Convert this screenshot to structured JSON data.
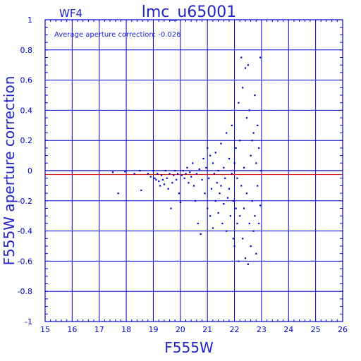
{
  "chart_data": {
    "type": "scatter",
    "chip_label": "WF4",
    "title": "lmc_u65001",
    "annotation": "Average aperture correction: -0.026",
    "xlabel": "F555W",
    "ylabel": "F555W aperture correction",
    "xlim": [
      15,
      26
    ],
    "ylim": [
      -1,
      1
    ],
    "xticks": [
      "15",
      "16",
      "17",
      "18",
      "19",
      "20",
      "21",
      "22",
      "23",
      "24",
      "25",
      "26"
    ],
    "yticks": [
      "-1",
      "-0.8",
      "-0.6",
      "-0.4",
      "-0.2",
      "0",
      "0.2",
      "0.4",
      "0.6",
      "0.8",
      "1"
    ],
    "grid": true,
    "reference_lines": [
      {
        "name": "zero",
        "y": 0.0,
        "color": "#0000cc"
      },
      {
        "name": "average",
        "y": -0.026,
        "color": "#dd2222"
      }
    ],
    "colors": {
      "axes": "#0000cc",
      "points": "#0000cc",
      "text": "#2222cc",
      "average_line": "#dd2222"
    },
    "series": [
      {
        "points": [
          [
            17.5,
            -0.01
          ],
          [
            17.7,
            -0.15
          ],
          [
            17.95,
            -0.005
          ],
          [
            18.3,
            -0.02
          ],
          [
            18.5,
            0.0
          ],
          [
            18.55,
            -0.13
          ],
          [
            18.8,
            -0.02
          ],
          [
            18.9,
            -0.04
          ],
          [
            19.0,
            0.0
          ],
          [
            19.05,
            -0.05
          ],
          [
            19.1,
            -0.06
          ],
          [
            19.15,
            -0.02
          ],
          [
            19.2,
            -0.07
          ],
          [
            19.25,
            -0.1
          ],
          [
            19.3,
            -0.03
          ],
          [
            19.35,
            -0.06
          ],
          [
            19.4,
            -0.09
          ],
          [
            19.45,
            0.0
          ],
          [
            19.5,
            -0.05
          ],
          [
            19.55,
            -0.12
          ],
          [
            19.6,
            -0.02
          ],
          [
            19.65,
            -0.25
          ],
          [
            19.7,
            -0.08
          ],
          [
            19.75,
            -0.03
          ],
          [
            19.8,
            0.0
          ],
          [
            19.85,
            -0.06
          ],
          [
            19.9,
            -0.02
          ],
          [
            19.95,
            -0.15
          ],
          [
            20.0,
            -0.21
          ],
          [
            20.05,
            -0.03
          ],
          [
            20.1,
            0.0
          ],
          [
            20.15,
            -0.05
          ],
          [
            20.2,
            -0.02
          ],
          [
            20.25,
            0.02
          ],
          [
            20.3,
            -0.08
          ],
          [
            20.35,
            -0.01
          ],
          [
            20.4,
            -0.04
          ],
          [
            20.45,
            0.05
          ],
          [
            20.5,
            -0.1
          ],
          [
            20.55,
            -0.2
          ],
          [
            20.6,
            -0.02
          ],
          [
            20.65,
            -0.35
          ],
          [
            20.7,
            0.01
          ],
          [
            20.75,
            -0.42
          ],
          [
            20.8,
            -0.06
          ],
          [
            20.85,
            0.08
          ],
          [
            20.9,
            -0.15
          ],
          [
            20.95,
            0.02
          ],
          [
            21.0,
            -0.25
          ],
          [
            21.0,
            0.15
          ],
          [
            21.05,
            -0.05
          ],
          [
            21.1,
            -0.3
          ],
          [
            21.1,
            0.1
          ],
          [
            21.15,
            -0.12
          ],
          [
            21.2,
            0.05
          ],
          [
            21.2,
            -0.38
          ],
          [
            21.25,
            -0.02
          ],
          [
            21.3,
            -0.2
          ],
          [
            21.3,
            0.12
          ],
          [
            21.35,
            -0.08
          ],
          [
            21.4,
            0.0
          ],
          [
            21.4,
            -0.28
          ],
          [
            21.45,
            -0.15
          ],
          [
            21.5,
            0.18
          ],
          [
            21.5,
            -0.1
          ],
          [
            21.55,
            -0.35
          ],
          [
            21.6,
            0.02
          ],
          [
            21.6,
            -0.22
          ],
          [
            21.65,
            -0.05
          ],
          [
            21.7,
            0.25
          ],
          [
            21.7,
            -0.4
          ],
          [
            21.75,
            -0.18
          ],
          [
            21.8,
            0.08
          ],
          [
            21.8,
            -0.12
          ],
          [
            21.85,
            -0.3
          ],
          [
            21.9,
            0.3
          ],
          [
            21.9,
            -0.02
          ],
          [
            21.95,
            -0.45
          ],
          [
            21.95,
            -0.2
          ],
          [
            22.0,
            0.05
          ],
          [
            22.0,
            -0.5
          ],
          [
            22.05,
            -0.25
          ],
          [
            22.05,
            0.15
          ],
          [
            22.1,
            -0.35
          ],
          [
            22.1,
            -0.05
          ],
          [
            22.15,
            0.45
          ],
          [
            22.15,
            -0.6
          ],
          [
            22.2,
            0.2
          ],
          [
            22.2,
            -0.3
          ],
          [
            22.25,
            0.75
          ],
          [
            22.25,
            -0.1
          ],
          [
            22.3,
            0.55
          ],
          [
            22.3,
            -0.45
          ],
          [
            22.35,
            0.02
          ],
          [
            22.35,
            -0.25
          ],
          [
            22.4,
            0.68
          ],
          [
            22.4,
            -0.58
          ],
          [
            22.45,
            0.35
          ],
          [
            22.45,
            -0.15
          ],
          [
            22.5,
            0.7
          ],
          [
            22.5,
            -0.62
          ],
          [
            22.55,
            0.4
          ],
          [
            22.55,
            -0.35
          ],
          [
            22.6,
            0.1
          ],
          [
            22.6,
            -0.5
          ],
          [
            22.65,
            0.2
          ],
          [
            22.65,
            -0.2
          ],
          [
            22.7,
            0.25
          ],
          [
            22.7,
            -0.4
          ],
          [
            22.75,
            0.5
          ],
          [
            22.75,
            -0.3
          ],
          [
            22.8,
            0.05
          ],
          [
            22.8,
            -0.55
          ],
          [
            22.85,
            0.3
          ],
          [
            22.85,
            -0.1
          ],
          [
            22.9,
            0.15
          ],
          [
            22.9,
            -0.35
          ],
          [
            22.95,
            0.75
          ],
          [
            22.95,
            -0.23
          ],
          [
            22.98,
            0.0
          ]
        ]
      }
    ]
  }
}
